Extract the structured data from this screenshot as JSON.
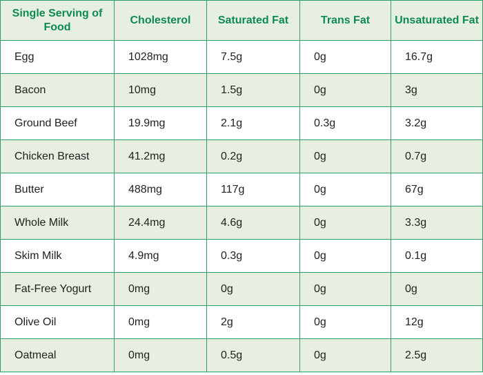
{
  "table": {
    "headers": [
      "Single Serving of Food",
      "Cholesterol",
      "Saturated Fat",
      "Trans Fat",
      "Unsaturated Fat"
    ],
    "rows": [
      [
        "Egg",
        "1028mg",
        "7.5g",
        "0g",
        "16.7g"
      ],
      [
        "Bacon",
        "10mg",
        "1.5g",
        "0g",
        "3g"
      ],
      [
        "Ground Beef",
        "19.9mg",
        "2.1g",
        "0.3g",
        "3.2g"
      ],
      [
        "Chicken Breast",
        "41.2mg",
        "0.2g",
        "0g",
        "0.7g"
      ],
      [
        "Butter",
        "488mg",
        "117g",
        "0g",
        "67g"
      ],
      [
        "Whole Milk",
        "24.4mg",
        "4.6g",
        "0g",
        "3.3g"
      ],
      [
        "Skim Milk",
        "4.9mg",
        "0.3g",
        "0g",
        "0.1g"
      ],
      [
        "Fat-Free Yogurt",
        "0mg",
        "0g",
        "0g",
        "0g"
      ],
      [
        "Olive Oil",
        "0mg",
        "2g",
        "0g",
        "12g"
      ],
      [
        "Oatmeal",
        "0mg",
        "0.5g",
        "0g",
        "2.5g"
      ]
    ]
  },
  "colors": {
    "header_text": "#0f8a52",
    "border": "#2e9e69",
    "stripe": "#e6efe0"
  }
}
